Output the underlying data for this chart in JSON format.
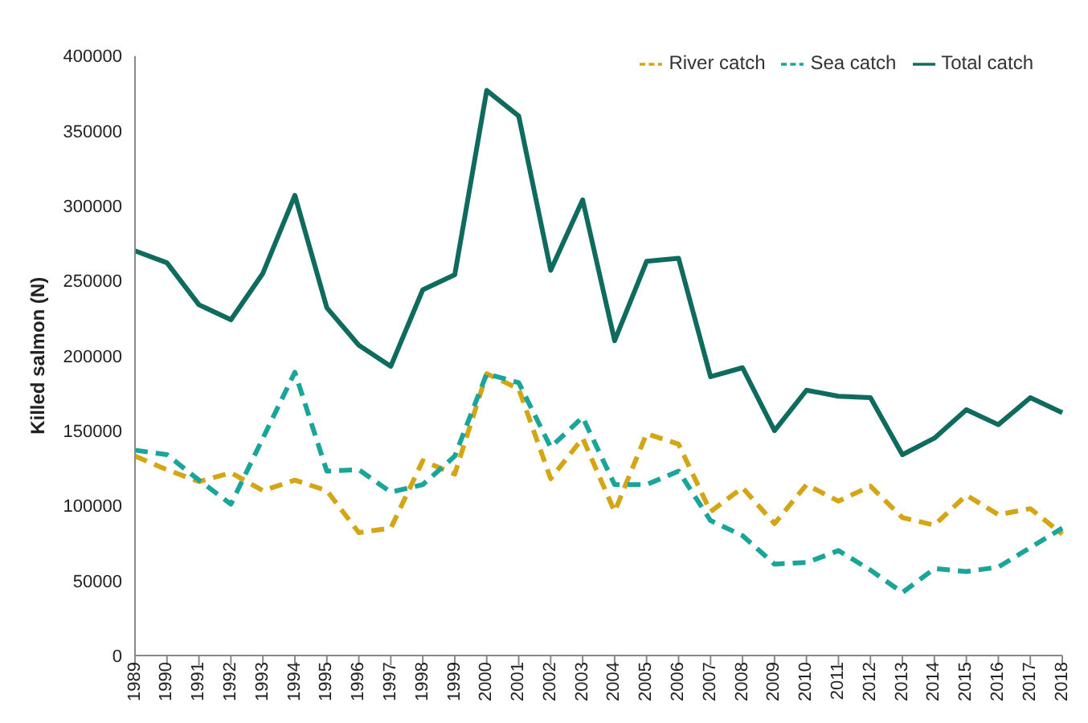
{
  "chart_data": {
    "type": "line",
    "ylabel": "Killed salmon (N)",
    "categories": [
      "1989",
      "1990",
      "1991",
      "1992",
      "1993",
      "1994",
      "1995",
      "1996",
      "1997",
      "1998",
      "1999",
      "2000",
      "2001",
      "2002",
      "2003",
      "2004",
      "2005",
      "2006",
      "2007",
      "2008",
      "2009",
      "2010",
      "2011",
      "2012",
      "2013",
      "2014",
      "2015",
      "2016",
      "2017",
      "2018"
    ],
    "series": [
      {
        "name": "River catch",
        "color": "#d4a514",
        "line_style": "dashed",
        "values": [
          133000,
          124000,
          116000,
          122000,
          110000,
          117000,
          110000,
          82000,
          85000,
          130000,
          121000,
          188000,
          178000,
          118000,
          145000,
          96000,
          148000,
          141000,
          96000,
          112000,
          88000,
          114000,
          103000,
          113000,
          92000,
          87000,
          107000,
          94000,
          98000,
          81000
        ]
      },
      {
        "name": "Sea catch",
        "color": "#1aa59a",
        "line_style": "dashed",
        "values": [
          137000,
          134000,
          117000,
          101000,
          145000,
          189000,
          123000,
          124000,
          109000,
          114000,
          133000,
          188000,
          182000,
          139000,
          159000,
          114000,
          114000,
          123000,
          90000,
          80000,
          61000,
          62000,
          70000,
          57000,
          42000,
          58000,
          56000,
          59000,
          72000,
          85000
        ]
      },
      {
        "name": "Total catch",
        "color": "#0f6b5e",
        "line_style": "solid",
        "values": [
          270000,
          262000,
          234000,
          224000,
          255000,
          307000,
          232000,
          207000,
          193000,
          244000,
          254000,
          377000,
          360000,
          257000,
          304000,
          210000,
          263000,
          265000,
          186000,
          192000,
          150000,
          177000,
          173000,
          172000,
          134000,
          145000,
          164000,
          154000,
          172000,
          162000
        ]
      }
    ],
    "ylim": [
      0,
      400000
    ],
    "yticks": [
      0,
      50000,
      100000,
      150000,
      200000,
      250000,
      300000,
      350000,
      400000
    ],
    "grid": false,
    "legend": "top right",
    "marker": "none"
  }
}
